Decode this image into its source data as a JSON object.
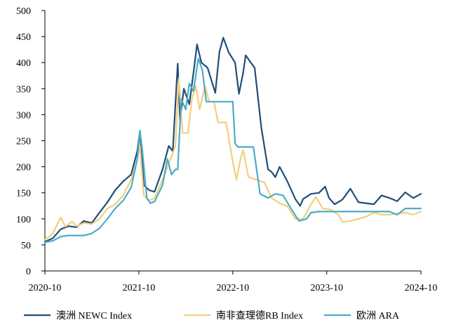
{
  "chart_data": {
    "type": "line",
    "title": "",
    "xlabel": "",
    "ylabel": "",
    "ylim": [
      0,
      500
    ],
    "y_ticks": [
      0,
      50,
      100,
      150,
      200,
      250,
      300,
      350,
      400,
      450,
      500
    ],
    "x_tick_labels": [
      "2020-10",
      "2021-10",
      "2022-10",
      "2023-10",
      "2024-10"
    ],
    "x_tick_dates": [
      "2020-10-01",
      "2021-10-01",
      "2022-10-01",
      "2023-10-01",
      "2024-10-01"
    ],
    "grid": false,
    "legend_position": "bottom",
    "series": [
      {
        "name": "澳洲 NEWC Index",
        "color": "#1f4e79",
        "points": [
          [
            "2020-10-01",
            56
          ],
          [
            "2020-11-01",
            63
          ],
          [
            "2020-12-01",
            80
          ],
          [
            "2021-01-01",
            86
          ],
          [
            "2021-02-01",
            84
          ],
          [
            "2021-03-01",
            96
          ],
          [
            "2021-04-01",
            92
          ],
          [
            "2021-05-01",
            112
          ],
          [
            "2021-06-01",
            132
          ],
          [
            "2021-07-01",
            155
          ],
          [
            "2021-08-01",
            172
          ],
          [
            "2021-09-01",
            185
          ],
          [
            "2021-09-25",
            230
          ],
          [
            "2021-10-05",
            268
          ],
          [
            "2021-10-20",
            165
          ],
          [
            "2021-11-10",
            155
          ],
          [
            "2021-12-01",
            152
          ],
          [
            "2022-01-01",
            195
          ],
          [
            "2022-01-25",
            240
          ],
          [
            "2022-02-10",
            230
          ],
          [
            "2022-03-01",
            398
          ],
          [
            "2022-03-10",
            290
          ],
          [
            "2022-03-25",
            350
          ],
          [
            "2022-04-15",
            320
          ],
          [
            "2022-05-05",
            395
          ],
          [
            "2022-05-15",
            435
          ],
          [
            "2022-06-01",
            400
          ],
          [
            "2022-06-25",
            390
          ],
          [
            "2022-07-15",
            358
          ],
          [
            "2022-07-25",
            342
          ],
          [
            "2022-08-10",
            420
          ],
          [
            "2022-08-25",
            448
          ],
          [
            "2022-09-15",
            420
          ],
          [
            "2022-10-10",
            400
          ],
          [
            "2022-10-25",
            340
          ],
          [
            "2022-11-10",
            380
          ],
          [
            "2022-11-20",
            414
          ],
          [
            "2022-12-10",
            400
          ],
          [
            "2022-12-25",
            390
          ],
          [
            "2023-01-20",
            275
          ],
          [
            "2023-02-15",
            195
          ],
          [
            "2023-03-01",
            190
          ],
          [
            "2023-03-15",
            180
          ],
          [
            "2023-04-01",
            200
          ],
          [
            "2023-05-01",
            172
          ],
          [
            "2023-06-01",
            138
          ],
          [
            "2023-06-20",
            125
          ],
          [
            "2023-07-01",
            138
          ],
          [
            "2023-08-01",
            148
          ],
          [
            "2023-09-01",
            150
          ],
          [
            "2023-09-25",
            162
          ],
          [
            "2023-10-10",
            140
          ],
          [
            "2023-11-01",
            128
          ],
          [
            "2023-12-01",
            137
          ],
          [
            "2024-01-01",
            158
          ],
          [
            "2024-02-01",
            132
          ],
          [
            "2024-03-01",
            130
          ],
          [
            "2024-04-01",
            128
          ],
          [
            "2024-05-01",
            145
          ],
          [
            "2024-06-01",
            140
          ],
          [
            "2024-07-01",
            134
          ],
          [
            "2024-08-01",
            151
          ],
          [
            "2024-09-01",
            140
          ],
          [
            "2024-10-01",
            148
          ]
        ]
      },
      {
        "name": "南非查理德RB Index",
        "color": "#f2cf7f",
        "points": [
          [
            "2020-10-01",
            60
          ],
          [
            "2020-11-01",
            72
          ],
          [
            "2020-12-01",
            103
          ],
          [
            "2020-12-20",
            85
          ],
          [
            "2021-01-15",
            95
          ],
          [
            "2021-02-01",
            86
          ],
          [
            "2021-03-01",
            92
          ],
          [
            "2021-04-01",
            90
          ],
          [
            "2021-05-01",
            100
          ],
          [
            "2021-06-01",
            120
          ],
          [
            "2021-07-01",
            128
          ],
          [
            "2021-08-01",
            145
          ],
          [
            "2021-09-01",
            175
          ],
          [
            "2021-09-25",
            215
          ],
          [
            "2021-10-05",
            240
          ],
          [
            "2021-10-20",
            145
          ],
          [
            "2021-11-10",
            135
          ],
          [
            "2021-12-01",
            140
          ],
          [
            "2022-01-01",
            175
          ],
          [
            "2022-02-01",
            215
          ],
          [
            "2022-02-20",
            240
          ],
          [
            "2022-03-05",
            370
          ],
          [
            "2022-03-20",
            265
          ],
          [
            "2022-04-10",
            265
          ],
          [
            "2022-04-25",
            330
          ],
          [
            "2022-05-10",
            355
          ],
          [
            "2022-05-25",
            310
          ],
          [
            "2022-06-15",
            355
          ],
          [
            "2022-07-01",
            325
          ],
          [
            "2022-07-20",
            325
          ],
          [
            "2022-08-05",
            285
          ],
          [
            "2022-09-05",
            285
          ],
          [
            "2022-10-01",
            210
          ],
          [
            "2022-10-15",
            175
          ],
          [
            "2022-11-01",
            218
          ],
          [
            "2022-11-10",
            232
          ],
          [
            "2022-12-01",
            180
          ],
          [
            "2023-01-01",
            175
          ],
          [
            "2023-02-01",
            170
          ],
          [
            "2023-03-01",
            140
          ],
          [
            "2023-04-01",
            130
          ],
          [
            "2023-05-01",
            124
          ],
          [
            "2023-06-01",
            100
          ],
          [
            "2023-07-01",
            100
          ],
          [
            "2023-08-01",
            128
          ],
          [
            "2023-08-20",
            142
          ],
          [
            "2023-09-15",
            120
          ],
          [
            "2023-10-15",
            118
          ],
          [
            "2023-11-15",
            108
          ],
          [
            "2023-12-01",
            94
          ],
          [
            "2024-01-01",
            96
          ],
          [
            "2024-02-01",
            100
          ],
          [
            "2024-03-01",
            104
          ],
          [
            "2024-04-01",
            112
          ],
          [
            "2024-05-01",
            108
          ],
          [
            "2024-06-01",
            108
          ],
          [
            "2024-07-01",
            110
          ],
          [
            "2024-08-01",
            112
          ],
          [
            "2024-09-01",
            108
          ],
          [
            "2024-10-01",
            114
          ]
        ]
      },
      {
        "name": "欧洲 ARA",
        "color": "#4bacc6",
        "points": [
          [
            "2020-10-01",
            55
          ],
          [
            "2020-11-01",
            58
          ],
          [
            "2020-12-01",
            66
          ],
          [
            "2021-01-01",
            68
          ],
          [
            "2021-02-01",
            68
          ],
          [
            "2021-03-01",
            68
          ],
          [
            "2021-04-01",
            72
          ],
          [
            "2021-05-01",
            82
          ],
          [
            "2021-06-01",
            100
          ],
          [
            "2021-07-01",
            120
          ],
          [
            "2021-08-01",
            135
          ],
          [
            "2021-09-01",
            160
          ],
          [
            "2021-09-25",
            215
          ],
          [
            "2021-10-05",
            270
          ],
          [
            "2021-10-15",
            230
          ],
          [
            "2021-11-01",
            140
          ],
          [
            "2021-11-15",
            130
          ],
          [
            "2021-12-01",
            133
          ],
          [
            "2022-01-01",
            165
          ],
          [
            "2022-01-20",
            215
          ],
          [
            "2022-02-05",
            185
          ],
          [
            "2022-02-20",
            195
          ],
          [
            "2022-03-01",
            195
          ],
          [
            "2022-03-15",
            330
          ],
          [
            "2022-04-01",
            310
          ],
          [
            "2022-04-15",
            360
          ],
          [
            "2022-05-01",
            345
          ],
          [
            "2022-05-20",
            408
          ],
          [
            "2022-06-05",
            385
          ],
          [
            "2022-06-20",
            325
          ],
          [
            "2022-08-01",
            325
          ],
          [
            "2022-09-10",
            325
          ],
          [
            "2022-10-01",
            325
          ],
          [
            "2022-10-10",
            245
          ],
          [
            "2022-10-20",
            238
          ],
          [
            "2022-12-20",
            238
          ],
          [
            "2023-01-15",
            148
          ],
          [
            "2023-02-15",
            140
          ],
          [
            "2023-03-15",
            148
          ],
          [
            "2023-04-15",
            145
          ],
          [
            "2023-05-15",
            120
          ],
          [
            "2023-06-15",
            96
          ],
          [
            "2023-07-15",
            100
          ],
          [
            "2023-08-01",
            112
          ],
          [
            "2023-09-01",
            114
          ],
          [
            "2023-12-01",
            114
          ],
          [
            "2024-03-01",
            114
          ],
          [
            "2024-06-01",
            114
          ],
          [
            "2024-07-01",
            108
          ],
          [
            "2024-08-01",
            120
          ],
          [
            "2024-10-01",
            120
          ]
        ]
      }
    ]
  }
}
